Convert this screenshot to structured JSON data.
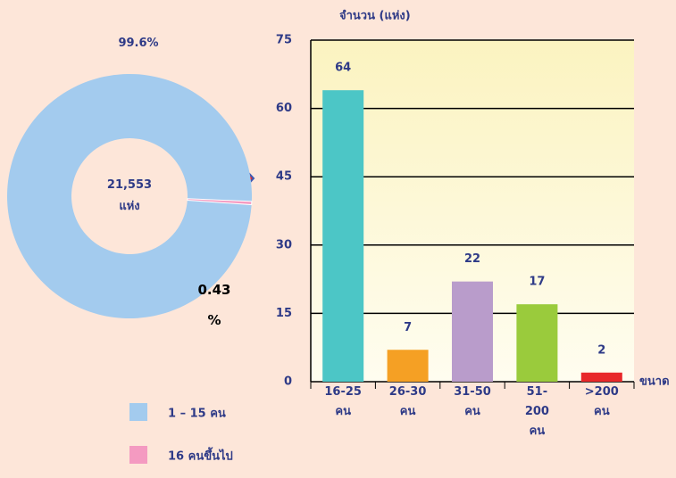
{
  "chart_data": [
    {
      "type": "pie",
      "labels": [
        "1 – 15 คน",
        "16 คนขึ้นไป"
      ],
      "values": [
        99.6,
        0.43
      ],
      "value_labels": [
        "99.6%",
        "0.43 %"
      ],
      "colors": [
        "#a3cbee",
        "#f49ac1"
      ],
      "center_label": "21,553 แห่ง"
    },
    {
      "type": "bar",
      "y_label": "จำนวน (แห่ง)",
      "x_label": "ขนาด",
      "categories": [
        "16-25 คน",
        "26-30 คน",
        "31-50 คน",
        "51-200 คน",
        ">200 คน"
      ],
      "values": [
        64,
        7,
        22,
        17,
        2
      ],
      "colors": [
        "#4cc6c6",
        "#f5a024",
        "#b99ccb",
        "#9acb3c",
        "#e8282a"
      ],
      "ylim": [
        0,
        75
      ],
      "yticks": [
        0,
        15,
        30,
        45,
        60,
        75
      ],
      "grid": true
    }
  ]
}
